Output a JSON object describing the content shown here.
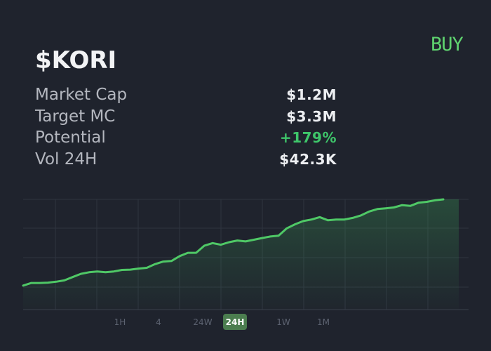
{
  "token": {
    "ticker": "$KORI"
  },
  "actions": {
    "buy_label": "BUY"
  },
  "stats": [
    {
      "label": "Market Cap",
      "value": "$1.2M",
      "tone": "neutral"
    },
    {
      "label": "Target MC",
      "value": "$3.3M",
      "tone": "neutral"
    },
    {
      "label": "Potential",
      "value": "+179%",
      "tone": "positive"
    },
    {
      "label": "Vol 24H",
      "value": "$42.3K",
      "tone": "neutral"
    }
  ],
  "timeframes": {
    "options": [
      "1H",
      "4",
      "24W",
      "24H",
      "1W",
      "1M"
    ],
    "selected": "24H"
  },
  "colors": {
    "background": "#1f232d",
    "accent": "#5fd36f",
    "positive": "#3ec66a",
    "line": "#4fc866",
    "grid": "#2f3440"
  },
  "chart_data": {
    "type": "area",
    "x": [
      0,
      1,
      2,
      3,
      4,
      5,
      6,
      7,
      8,
      9,
      10,
      11,
      12,
      13,
      14,
      15,
      16,
      17,
      18,
      19,
      20,
      21,
      22,
      23,
      24,
      25,
      26,
      27,
      28,
      29,
      30,
      31,
      32,
      33,
      34,
      35,
      36,
      37,
      38,
      39,
      40,
      41,
      42,
      43,
      44,
      45,
      46,
      47,
      48,
      49,
      50,
      51
    ],
    "values": [
      6,
      8,
      8,
      8.3,
      9,
      10,
      12.5,
      15,
      16.2,
      16.8,
      16.2,
      16.8,
      18,
      18.2,
      19,
      19.6,
      22.4,
      24.4,
      24.8,
      28.6,
      31.1,
      31.1,
      36.6,
      38.5,
      37.3,
      39.2,
      40.5,
      39.8,
      41.1,
      42.4,
      43.6,
      44.2,
      49.8,
      52.9,
      55.4,
      56.6,
      58.4,
      56,
      56.6,
      56.6,
      57.8,
      59.7,
      62.7,
      64.6,
      65.2,
      65.8,
      67.6,
      67,
      69.5,
      70.1,
      71.3,
      72
    ],
    "ylim": [
      0,
      72
    ],
    "grid": true,
    "xlabel": "",
    "ylabel": ""
  }
}
